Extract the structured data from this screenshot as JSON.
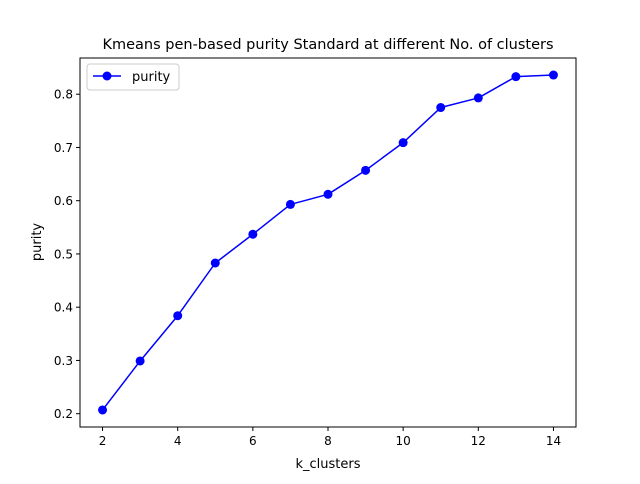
{
  "chart_data": {
    "type": "line",
    "title": "Kmeans pen-based purity Standard at different No. of clusters",
    "xlabel": "k_clusters",
    "ylabel": "purity",
    "x": [
      2,
      3,
      4,
      5,
      6,
      7,
      8,
      9,
      10,
      11,
      12,
      13,
      14
    ],
    "series": [
      {
        "name": "purity",
        "color": "#0000ff",
        "marker": "circle",
        "values": [
          0.207,
          0.299,
          0.384,
          0.483,
          0.537,
          0.593,
          0.612,
          0.657,
          0.709,
          0.775,
          0.793,
          0.833,
          0.836
        ]
      }
    ],
    "xlim": [
      1.4,
      14.6
    ],
    "ylim": [
      0.175,
      0.868
    ],
    "x_ticks": [
      2,
      4,
      6,
      8,
      10,
      12,
      14
    ],
    "x_tick_labels": [
      "2",
      "4",
      "6",
      "8",
      "10",
      "12",
      "14"
    ],
    "y_ticks": [
      0.2,
      0.3,
      0.4,
      0.5,
      0.6,
      0.7,
      0.8
    ],
    "y_tick_labels": [
      "0.2",
      "0.3",
      "0.4",
      "0.5",
      "0.6",
      "0.7",
      "0.8"
    ],
    "grid": false,
    "legend_position": "upper-left"
  }
}
